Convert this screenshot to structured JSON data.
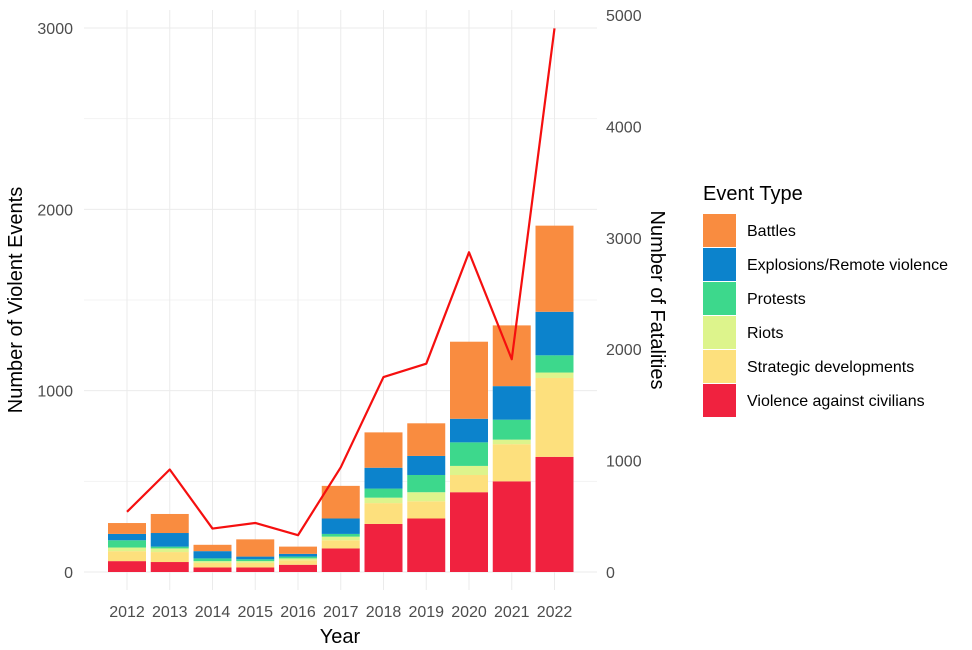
{
  "chart_data": {
    "type": "bar",
    "stacked": true,
    "categories": [
      "2012",
      "2013",
      "2014",
      "2015",
      "2016",
      "2017",
      "2018",
      "2019",
      "2020",
      "2021",
      "2022"
    ],
    "xlabel": "Year",
    "ylabel": "Number of Violent Events",
    "y2label": "Number of Fatalities",
    "ylim": [
      0,
      3000
    ],
    "y2lim": [
      0,
      5000
    ],
    "yticks": [
      0,
      1000,
      2000,
      3000
    ],
    "y2ticks": [
      0,
      1000,
      2000,
      3000,
      4000,
      5000
    ],
    "grid": true,
    "legend": {
      "title": "Event Type",
      "position": "right"
    },
    "series": [
      {
        "name": "Violence against civilians",
        "color": "#F0223F",
        "values": [
          60,
          55,
          25,
          25,
          40,
          130,
          265,
          295,
          440,
          500,
          635
        ]
      },
      {
        "name": "Strategic developments",
        "color": "#FDE07D",
        "values": [
          55,
          55,
          25,
          25,
          25,
          45,
          115,
          95,
          95,
          205,
          435
        ]
      },
      {
        "name": "Riots",
        "color": "#DDF48C",
        "values": [
          20,
          20,
          10,
          10,
          10,
          20,
          30,
          50,
          50,
          25,
          30
        ]
      },
      {
        "name": "Protests",
        "color": "#3DD88C",
        "values": [
          40,
          10,
          15,
          10,
          10,
          15,
          50,
          95,
          130,
          110,
          95
        ]
      },
      {
        "name": "Explosions/Remote violence",
        "color": "#0C83CC",
        "values": [
          35,
          75,
          40,
          15,
          15,
          85,
          115,
          105,
          130,
          185,
          240
        ]
      },
      {
        "name": "Battles",
        "color": "#F98C40",
        "values": [
          60,
          105,
          35,
          95,
          40,
          180,
          195,
          180,
          425,
          335,
          475
        ]
      }
    ],
    "line": {
      "axis": "right",
      "color": "#F50F0F",
      "values": [
        540,
        920,
        390,
        440,
        330,
        940,
        1750,
        1870,
        2870,
        1910,
        4880
      ]
    }
  }
}
